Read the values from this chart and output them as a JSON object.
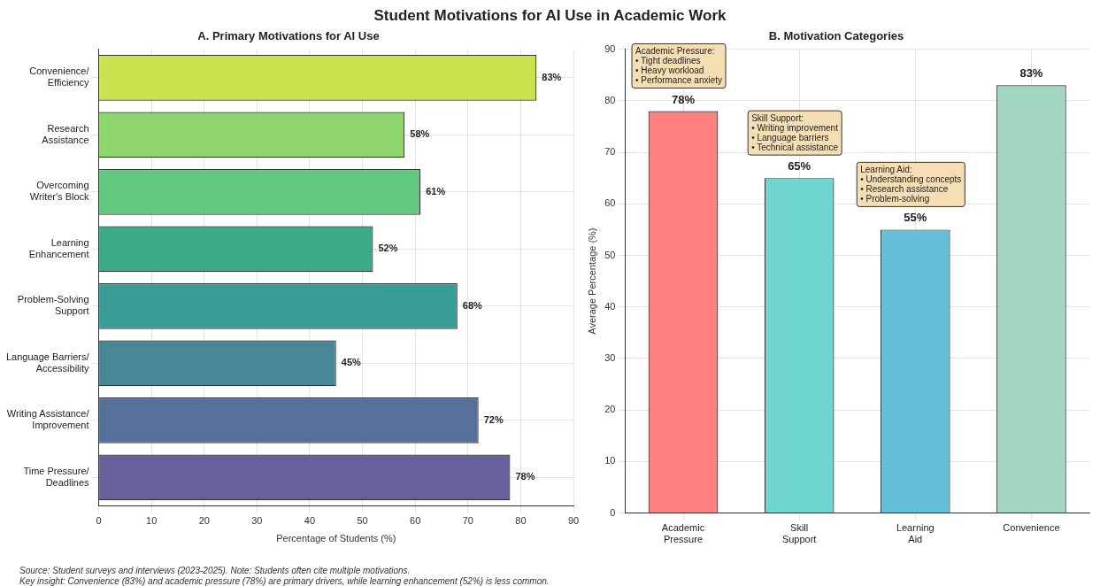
{
  "chart_data": [
    {
      "type": "bar",
      "title": "Student Motivations for AI Use in Academic Work",
      "subtitle": "A. Primary Motivations for AI Use",
      "xlabel": "Percentage of Students (%)",
      "orientation": "horizontal",
      "categories": [
        "Convenience/\nEfficiency",
        "Research\nAssistance",
        "Overcoming\nWriter's Block",
        "Learning\nEnhancement",
        "Problem-Solving\nSupport",
        "Language Barriers/\nAccessibility",
        "Writing Assistance/\nImprovement",
        "Time Pressure/\nDeadlines"
      ],
      "values": [
        83,
        58,
        61,
        52,
        68,
        45,
        72,
        78
      ],
      "value_labels": [
        "83%",
        "58%",
        "61%",
        "52%",
        "68%",
        "45%",
        "72%",
        "78%"
      ],
      "colors": [
        "#cbe24f",
        "#8ed56e",
        "#62c77f",
        "#3aaa8a",
        "#3a9c98",
        "#4a8796",
        "#56709a",
        "#66619a"
      ],
      "xlim": [
        0,
        90
      ],
      "xticks": [
        0,
        10,
        20,
        30,
        40,
        50,
        60,
        70,
        80,
        90
      ],
      "grid": true,
      "annotations": [
        "Source: Student surveys and interviews (2023-2025). Note: Students often cite multiple motivations.",
        "Key insight: Convenience (83%) and academic pressure (78%) are primary drivers, while learning enhancement (52%) is less common."
      ]
    },
    {
      "type": "bar",
      "title": "B. Motivation Categories",
      "ylabel": "Average Percentage (%)",
      "categories": [
        "Academic\nPressure",
        "Skill\nSupport",
        "Learning\nAid",
        "Convenience"
      ],
      "values": [
        78,
        65,
        55,
        83
      ],
      "value_labels": [
        "78%",
        "65%",
        "55%",
        "83%"
      ],
      "colors": [
        "#ff8080",
        "#6fd5d0",
        "#63c0d8",
        "#a3d6c0"
      ],
      "ylim": [
        0,
        90
      ],
      "yticks": [
        0,
        10,
        20,
        30,
        40,
        50,
        60,
        70,
        80,
        90
      ],
      "grid": true,
      "annotations": [
        "Academic Pressure:\n• Tight deadlines\n• Heavy workload\n• Performance anxiety",
        "Skill Support:\n• Writing improvement\n• Language barriers\n• Technical assistance",
        "Learning Aid:\n• Understanding concepts\n• Research assistance\n• Problem-solving"
      ]
    }
  ]
}
